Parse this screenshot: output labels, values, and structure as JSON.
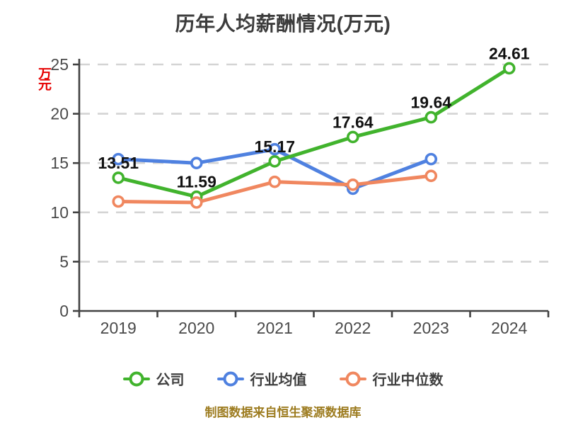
{
  "title": "历年人均薪酬情况(万元)",
  "y_axis_unit": "万元",
  "footer": "制图数据来自恒生聚源数据库",
  "colors": {
    "company_series": "#41b32d",
    "industry_mean_series": "#4f81e0",
    "industry_median_series": "#f0875f",
    "unit_label": "#e60000",
    "footer_text": "#9d7c20",
    "gridline": "#d4d4d4",
    "axis": "#424242",
    "data_label": "#121212"
  },
  "chart_data": {
    "type": "line",
    "title": "历年人均薪酬情况(万元)",
    "categories": [
      "2019",
      "2020",
      "2021",
      "2022",
      "2023",
      "2024"
    ],
    "series": [
      {
        "name": "公司",
        "color": "#41b32d",
        "values": [
          13.51,
          11.59,
          15.17,
          17.64,
          19.64,
          24.61
        ],
        "labels": [
          "13.51",
          "11.59",
          "15.17",
          "17.64",
          "19.64",
          "24.61"
        ]
      },
      {
        "name": "行业均值",
        "color": "#4f81e0",
        "values": [
          15.4,
          15.0,
          16.4,
          12.4,
          15.4,
          null
        ],
        "labels": []
      },
      {
        "name": "行业中位数",
        "color": "#f0875f",
        "values": [
          11.1,
          11.0,
          13.1,
          12.8,
          13.7,
          null
        ],
        "labels": []
      }
    ],
    "ylim": [
      0,
      25
    ],
    "yticks": [
      0,
      5,
      10,
      15,
      20,
      25
    ],
    "grid": true,
    "grid_style": "dashed",
    "legend_position": "bottom",
    "xlabel": "",
    "ylabel": "万元"
  }
}
